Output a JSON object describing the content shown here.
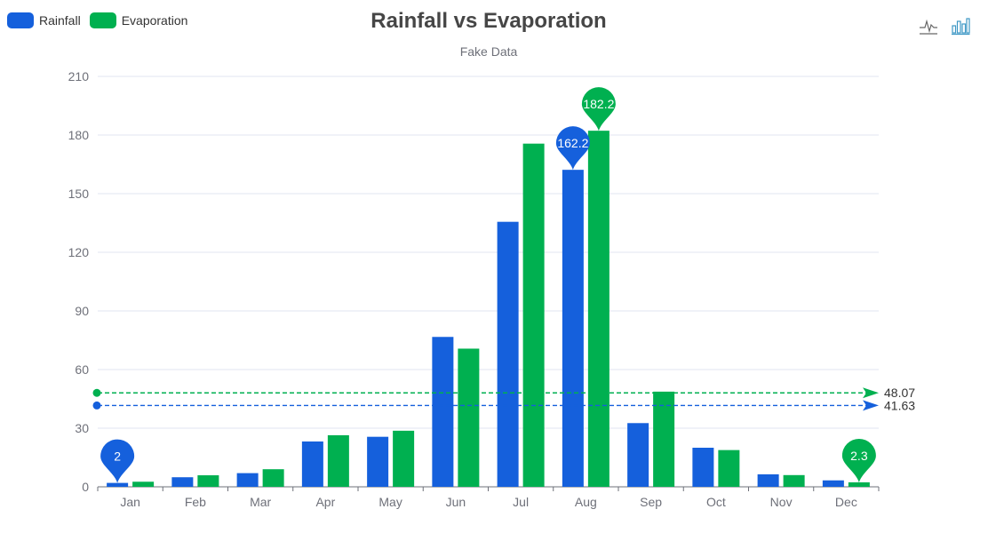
{
  "chart_data": {
    "type": "bar",
    "title": "Rainfall vs Evaporation",
    "subtitle": "Fake Data",
    "categories": [
      "Jan",
      "Feb",
      "Mar",
      "Apr",
      "May",
      "Jun",
      "Jul",
      "Aug",
      "Sep",
      "Oct",
      "Nov",
      "Dec"
    ],
    "series": [
      {
        "name": "Rainfall",
        "color": "#1560dc",
        "values": [
          2.0,
          4.9,
          7.0,
          23.2,
          25.6,
          76.7,
          135.6,
          162.2,
          32.6,
          20.0,
          6.4,
          3.3
        ],
        "max_label": "162.2",
        "min_label": "2",
        "average_label": "41.63",
        "average": 41.63
      },
      {
        "name": "Evaporation",
        "color": "#00b050",
        "values": [
          2.6,
          5.9,
          9.0,
          26.4,
          28.7,
          70.7,
          175.6,
          182.2,
          48.7,
          18.8,
          6.0,
          2.3
        ],
        "max_label": "182.2",
        "min_label": "2.3",
        "average_label": "48.07",
        "average": 48.07
      }
    ],
    "ylim": [
      0,
      210
    ],
    "yticks": [
      "0",
      "30",
      "60",
      "90",
      "120",
      "150",
      "180",
      "210"
    ],
    "legend_position": "top-left",
    "grid": true
  },
  "toolbox": {
    "line_icon": "line-chart-icon",
    "bar_icon": "bar-chart-icon"
  }
}
